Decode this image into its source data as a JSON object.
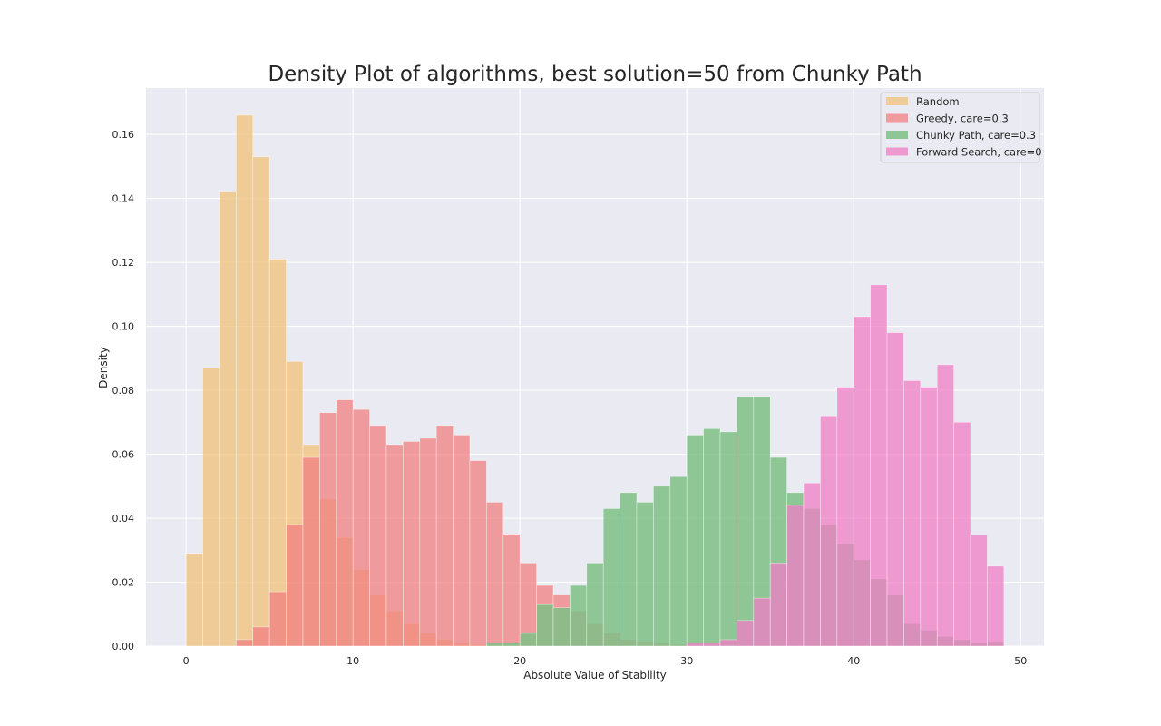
{
  "chart_data": {
    "type": "bar",
    "title": "Density Plot of algorithms, best solution=50 from Chunky Path",
    "xlabel": "Absolute Value of Stability",
    "ylabel": "Density",
    "xlim": [
      -2.4,
      51.4
    ],
    "ylim": [
      0,
      0.1745
    ],
    "xticks": [
      0,
      10,
      20,
      30,
      40,
      50
    ],
    "yticks": [
      0.0,
      0.02,
      0.04,
      0.06,
      0.08,
      0.1,
      0.12,
      0.14,
      0.16
    ],
    "ytick_labels": [
      "0.00",
      "0.02",
      "0.04",
      "0.06",
      "0.08",
      "0.10",
      "0.12",
      "0.14",
      "0.16"
    ],
    "grid": true,
    "legend_position": "top-right",
    "bin_edges": [
      0,
      1,
      2,
      3,
      4,
      5,
      6,
      7,
      8,
      9,
      10,
      11,
      12,
      13,
      14,
      15,
      16,
      17,
      18,
      19,
      20,
      21,
      22,
      23,
      24,
      25,
      26,
      27,
      28,
      29,
      30,
      31,
      32,
      33,
      34,
      35,
      36,
      37,
      38,
      39,
      40,
      41,
      42,
      43,
      44,
      45,
      46,
      47,
      48,
      49
    ],
    "series": [
      {
        "name": "Random",
        "color": "#f0c278",
        "alpha": 0.75,
        "values": [
          0.029,
          0.087,
          0.142,
          0.166,
          0.153,
          0.121,
          0.089,
          0.063,
          0.046,
          0.034,
          0.024,
          0.016,
          0.011,
          0.007,
          0.004,
          0.002,
          0.001,
          0.0005,
          0.0003,
          0.0002
        ]
      },
      {
        "name": "Greedy, care=0.3",
        "color": "#f08080",
        "alpha": 0.75,
        "values": [
          0,
          0,
          0,
          0.002,
          0.006,
          0.017,
          0.038,
          0.059,
          0.073,
          0.077,
          0.074,
          0.069,
          0.063,
          0.064,
          0.065,
          0.069,
          0.066,
          0.058,
          0.045,
          0.035,
          0.026,
          0.019,
          0.016,
          0.011,
          0.007,
          0.004,
          0.002,
          0.0015,
          0.001,
          0.0005,
          0.0003,
          0.0002
        ]
      },
      {
        "name": "Chunky Path, care=0.3",
        "color": "#7fbf86",
        "alpha": 0.85,
        "values": [
          0,
          0,
          0,
          0,
          0,
          0,
          0,
          0,
          0,
          0,
          0,
          0,
          0,
          0,
          0,
          0,
          0,
          0,
          0.001,
          0.001,
          0.004,
          0.013,
          0.012,
          0.019,
          0.026,
          0.043,
          0.048,
          0.045,
          0.05,
          0.053,
          0.066,
          0.068,
          0.067,
          0.078,
          0.078,
          0.059,
          0.048,
          0.043,
          0.038,
          0.032,
          0.027,
          0.021,
          0.016,
          0.007,
          0.005,
          0.003,
          0.002,
          0.001,
          0.0015
        ]
      },
      {
        "name": "Forward Search, care=0",
        "color": "#f07ec6",
        "alpha": 0.75,
        "values": [
          0,
          0,
          0,
          0,
          0,
          0,
          0,
          0,
          0,
          0,
          0,
          0,
          0,
          0,
          0,
          0,
          0,
          0,
          0,
          0,
          0,
          0,
          0,
          0,
          0,
          0,
          0,
          0,
          0,
          0,
          0.001,
          0.001,
          0.002,
          0.008,
          0.015,
          0.026,
          0.044,
          0.051,
          0.072,
          0.081,
          0.103,
          0.113,
          0.098,
          0.083,
          0.081,
          0.088,
          0.07,
          0.035,
          0.025
        ]
      }
    ]
  }
}
